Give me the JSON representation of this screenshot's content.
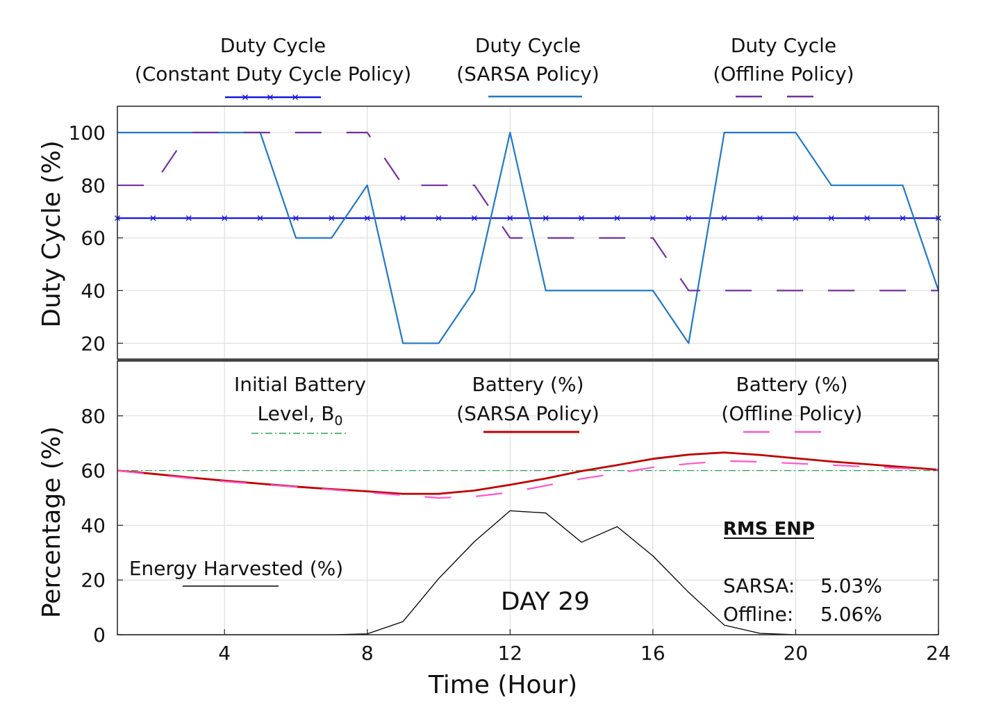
{
  "chart_data": [
    {
      "type": "line",
      "ylabel": "Duty Cycle (%)",
      "xlim": [
        1,
        24
      ],
      "ylim": [
        14,
        110
      ],
      "yticks": [
        20,
        40,
        60,
        80,
        100
      ],
      "xticks": [
        4,
        8,
        12,
        16,
        20,
        24
      ],
      "grid": true,
      "legend": [
        {
          "line1": "Duty Cycle",
          "line2": "(Constant Duty Cycle Policy)"
        },
        {
          "line1": "Duty Cycle",
          "line2": "(SARSA Policy)"
        },
        {
          "line1": "Duty Cycle",
          "line2": "(Offline Policy)"
        }
      ],
      "x": [
        1,
        2,
        3,
        4,
        5,
        6,
        7,
        8,
        9,
        10,
        11,
        12,
        13,
        14,
        15,
        16,
        17,
        18,
        19,
        20,
        21,
        22,
        23,
        24
      ],
      "series": [
        {
          "name": "Duty Cycle (Constant Duty Cycle Policy)",
          "color": "#1414e6",
          "style": "solid-x",
          "values": [
            67.5,
            67.5,
            67.5,
            67.5,
            67.5,
            67.5,
            67.5,
            67.5,
            67.5,
            67.5,
            67.5,
            67.5,
            67.5,
            67.5,
            67.5,
            67.5,
            67.5,
            67.5,
            67.5,
            67.5,
            67.5,
            67.5,
            67.5,
            67.5
          ]
        },
        {
          "name": "Duty Cycle (SARSA Policy)",
          "color": "#1f78c8",
          "style": "solid",
          "values": [
            100,
            100,
            100,
            100,
            100,
            60,
            60,
            80,
            20,
            20,
            40,
            100,
            40,
            40,
            40,
            40,
            20,
            100,
            100,
            100,
            80,
            80,
            80,
            40
          ]
        },
        {
          "name": "Duty Cycle (Offline Policy)",
          "color": "#7030a0",
          "style": "dashed",
          "values": [
            80,
            80,
            100,
            100,
            100,
            100,
            100,
            100,
            80,
            80,
            80,
            60,
            60,
            60,
            60,
            60,
            40,
            40,
            40,
            40,
            40,
            40,
            40,
            40
          ]
        }
      ]
    },
    {
      "type": "line",
      "xlabel": "Time (Hour)",
      "ylabel": "Percentage (%)",
      "xlim": [
        1,
        24
      ],
      "ylim": [
        0,
        100
      ],
      "yticks": [
        0,
        20,
        40,
        60,
        80
      ],
      "xticks": [
        4,
        8,
        12,
        16,
        20,
        24
      ],
      "grid": true,
      "legend": [
        {
          "line1": "Initial Battery",
          "line2": "Level, B",
          "sub": "0"
        },
        {
          "line1": "Battery (%)",
          "line2": "(SARSA Policy)"
        },
        {
          "line1": "Battery (%)",
          "line2": "(Offline Policy)"
        },
        {
          "line1": "Energy Harvested (%)"
        }
      ],
      "annotations": {
        "day": "DAY 29",
        "rms_title": "RMS ENP",
        "rms_rows": [
          {
            "label": "SARSA:",
            "value": "5.03%"
          },
          {
            "label": "Offline:",
            "value": "5.06%"
          }
        ]
      },
      "x": [
        1,
        2,
        3,
        4,
        5,
        6,
        7,
        8,
        9,
        10,
        11,
        12,
        13,
        14,
        15,
        16,
        17,
        18,
        19,
        20,
        21,
        22,
        23,
        24
      ],
      "series": [
        {
          "name": "Initial Battery Level, B0",
          "color": "#2aa05a",
          "style": "dashdot",
          "values": [
            60,
            60,
            60,
            60,
            60,
            60,
            60,
            60,
            60,
            60,
            60,
            60,
            60,
            60,
            60,
            60,
            60,
            60,
            60,
            60,
            60,
            60,
            60,
            60
          ]
        },
        {
          "name": "Battery (%) (SARSA Policy)",
          "color": "#c00000",
          "style": "solid-thick",
          "values": [
            60,
            58.8,
            57.5,
            56.3,
            55.2,
            54.1,
            53.2,
            52.4,
            51.5,
            51.5,
            52.7,
            54.8,
            57.1,
            59.8,
            62,
            64.3,
            65.8,
            66.6,
            65.7,
            64.5,
            63.3,
            62.3,
            61.3,
            60.3
          ]
        },
        {
          "name": "Battery (%) (Offline Policy)",
          "color": "#ff55cc",
          "style": "dashed",
          "values": [
            60,
            58.5,
            57.2,
            56,
            55,
            54,
            53,
            52,
            51,
            50,
            50.5,
            52,
            54.5,
            57,
            59,
            61.2,
            62.5,
            63.5,
            63.2,
            62.6,
            62,
            61.4,
            60.8,
            60.3
          ]
        },
        {
          "name": "Energy Harvested (%)",
          "color": "#000000",
          "style": "solid-thin",
          "values": [
            0,
            0,
            0,
            0,
            0,
            0,
            0,
            0.3,
            4.8,
            20.5,
            34,
            45.3,
            44.5,
            33.8,
            39.5,
            28.8,
            15.5,
            3.5,
            0.5,
            0,
            0,
            0,
            0,
            0
          ]
        }
      ]
    }
  ]
}
